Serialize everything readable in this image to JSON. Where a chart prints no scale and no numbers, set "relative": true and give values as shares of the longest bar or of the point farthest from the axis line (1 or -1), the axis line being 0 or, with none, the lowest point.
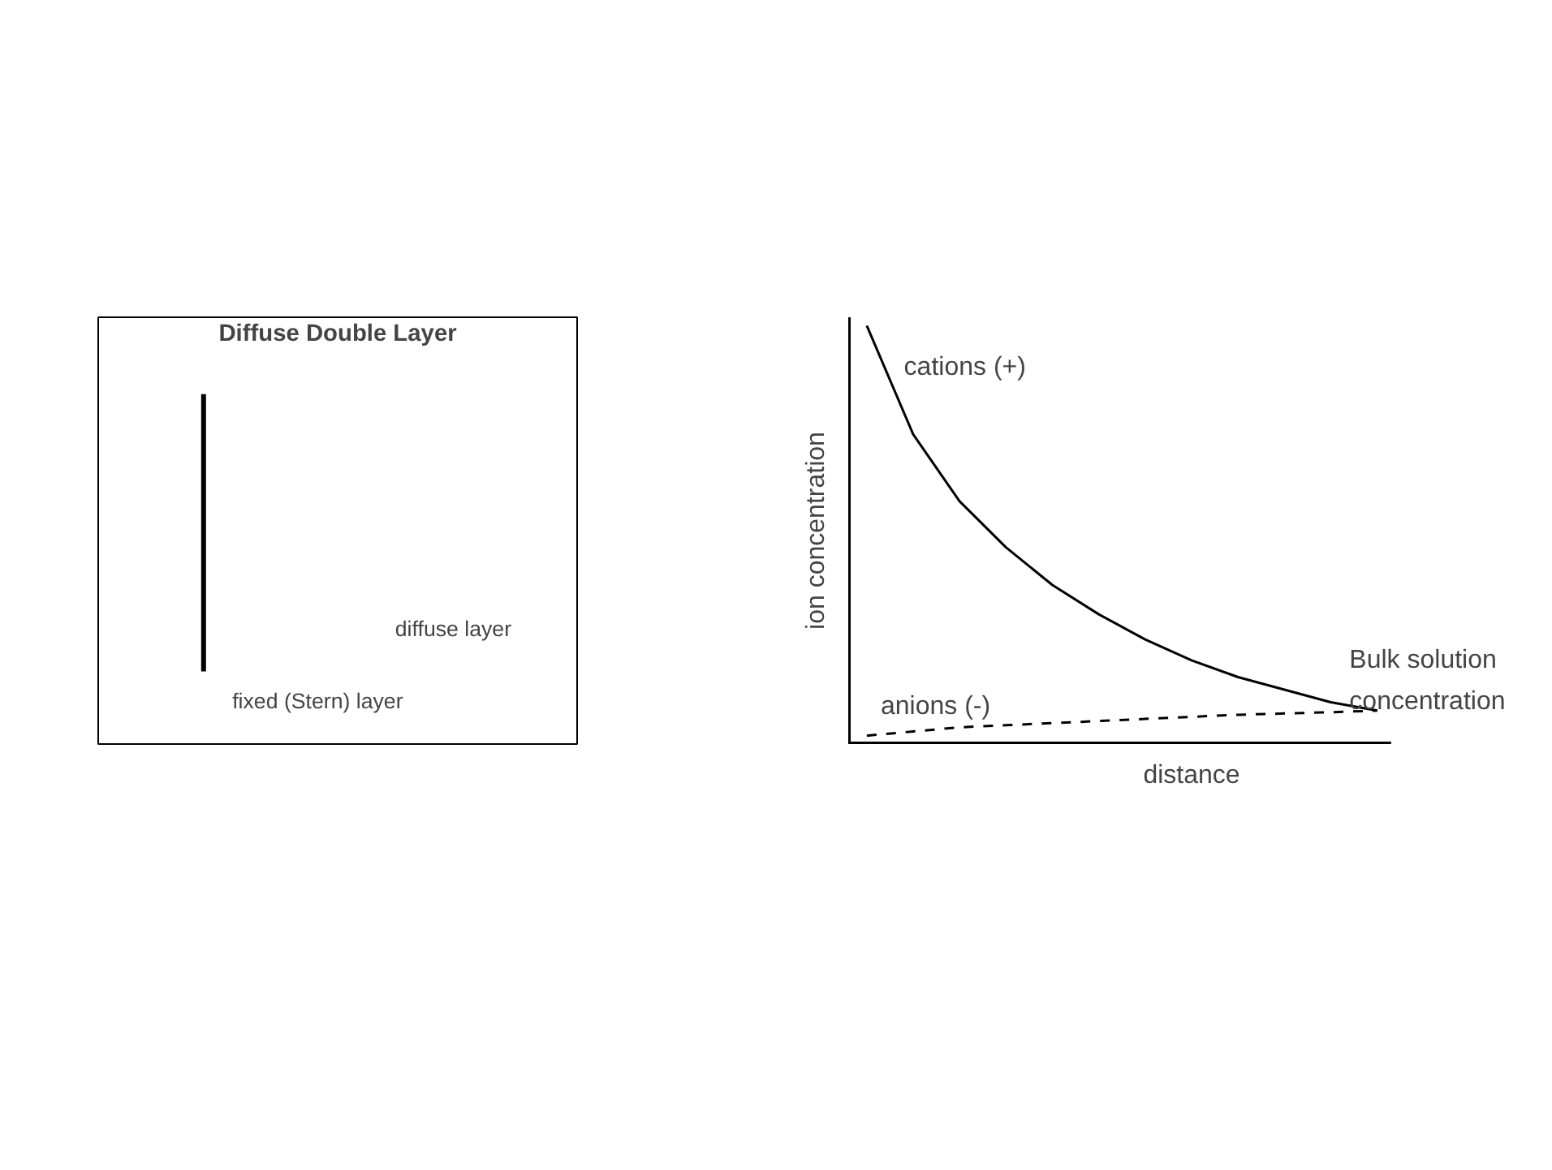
{
  "chart_data": [
    {
      "type": "other",
      "title": "Diffuse Double Layer",
      "annotations": [
        "diffuse layer",
        "fixed (Stern) layer"
      ]
    },
    {
      "type": "line",
      "relative": true,
      "xlabel": "distance",
      "ylabel": "ion concentration",
      "categories": [
        null,
        null,
        null,
        null,
        null,
        null,
        null,
        null,
        null,
        null,
        null,
        null
      ],
      "series": [
        {
          "color": "#000000",
          "line_style": "solid",
          "values": [
            1.0,
            0.74,
            0.58,
            0.47,
            0.38,
            0.31,
            0.25,
            0.2,
            0.16,
            0.13,
            0.1,
            0.08
          ]
        },
        {
          "color": "#000000",
          "line_style": "dashed",
          "values": [
            0.02,
            0.03,
            0.04,
            0.045,
            0.05,
            0.055,
            0.06,
            0.065,
            0.07,
            0.073,
            0.076,
            0.08
          ]
        }
      ],
      "annotations": [
        "cations (+)",
        "anions (-)",
        "Bulk solution concentration"
      ]
    }
  ]
}
